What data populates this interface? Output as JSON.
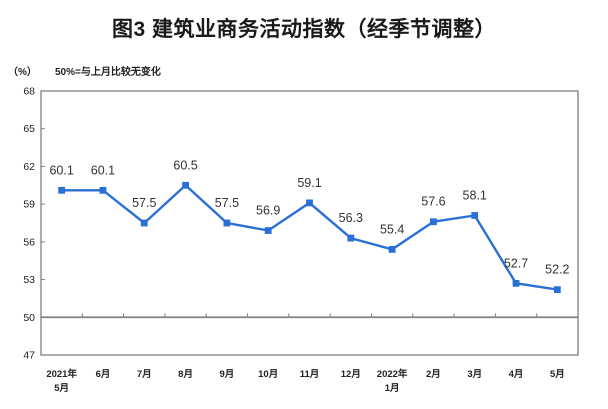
{
  "chart_data": {
    "type": "line",
    "title": "图3 建筑业商务活动指数（经季节调整）",
    "unit_label": "（%）",
    "note": "50%=与上月比较无变化",
    "categories": [
      "2021年5月",
      "6月",
      "7月",
      "8月",
      "9月",
      "10月",
      "11月",
      "12月",
      "2022年1月",
      "2月",
      "3月",
      "4月",
      "5月"
    ],
    "x_tick_lines": [
      [
        "2021年",
        "5月"
      ],
      [
        "6月"
      ],
      [
        "7月"
      ],
      [
        "8月"
      ],
      [
        "9月"
      ],
      [
        "10月"
      ],
      [
        "11月"
      ],
      [
        "12月"
      ],
      [
        "2022年",
        "1月"
      ],
      [
        "2月"
      ],
      [
        "3月"
      ],
      [
        "4月"
      ],
      [
        "5月"
      ]
    ],
    "series": [
      {
        "name": "建筑业商务活动指数",
        "values": [
          60.1,
          60.1,
          57.5,
          60.5,
          57.5,
          56.9,
          59.1,
          56.3,
          55.4,
          57.6,
          58.1,
          52.7,
          52.2
        ]
      }
    ],
    "data_labels": [
      "60.1",
      "60.1",
      "57.5",
      "60.5",
      "57.5",
      "56.9",
      "59.1",
      "56.3",
      "55.4",
      "57.6",
      "58.1",
      "52.7",
      "52.2"
    ],
    "ylim": [
      47,
      68
    ],
    "yticks": [
      47,
      50,
      53,
      56,
      59,
      62,
      65,
      68
    ],
    "reference_line": 50,
    "grid": "off",
    "legend": "none",
    "colors": {
      "line": "#2A6FD6",
      "marker": "#2A6FD6",
      "axis": "#808080",
      "reference_line": "#808080",
      "tick": "#808080",
      "axis_label": "#222222",
      "data_label": "#333333"
    }
  }
}
